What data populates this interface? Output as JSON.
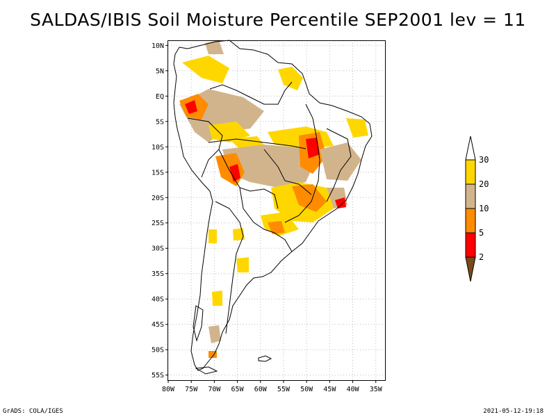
{
  "title": "SALDAS/IBIS Soil Moisture Percentile SEP2001 lev = 11",
  "footer": {
    "left": "GrADS: COLA/IGES",
    "right": "2021-05-12-19:18"
  },
  "map": {
    "lon_range": [
      -80,
      -33
    ],
    "lat_range": [
      -56,
      11
    ],
    "x_ticks": [
      {
        "lon": -80,
        "label": "80W"
      },
      {
        "lon": -75,
        "label": "75W"
      },
      {
        "lon": -70,
        "label": "70W"
      },
      {
        "lon": -65,
        "label": "65W"
      },
      {
        "lon": -60,
        "label": "60W"
      },
      {
        "lon": -55,
        "label": "55W"
      },
      {
        "lon": -50,
        "label": "50W"
      },
      {
        "lon": -45,
        "label": "45W"
      },
      {
        "lon": -40,
        "label": "40W"
      },
      {
        "lon": -35,
        "label": "35W"
      }
    ],
    "y_ticks": [
      {
        "lat": 10,
        "label": "10N"
      },
      {
        "lat": 5,
        "label": "5N"
      },
      {
        "lat": 0,
        "label": "EQ"
      },
      {
        "lat": -5,
        "label": "5S"
      },
      {
        "lat": -10,
        "label": "10S"
      },
      {
        "lat": -15,
        "label": "15S"
      },
      {
        "lat": -20,
        "label": "20S"
      },
      {
        "lat": -25,
        "label": "25S"
      },
      {
        "lat": -30,
        "label": "30S"
      },
      {
        "lat": -35,
        "label": "35S"
      },
      {
        "lat": -40,
        "label": "40S"
      },
      {
        "lat": -45,
        "label": "45S"
      },
      {
        "lat": -50,
        "label": "50S"
      },
      {
        "lat": -55,
        "label": "55S"
      }
    ],
    "grid": true
  },
  "colorbar": {
    "colors": [
      "#7a4a1a",
      "#ff0000",
      "#ff8c00",
      "#d2b48c",
      "#ffd700",
      "#ffffff"
    ],
    "labels": [
      "2",
      "5",
      "10",
      "20",
      "30"
    ]
  },
  "palette": {
    "yellow": "#ffd700",
    "tan": "#d2b48c",
    "orange": "#ff8c00",
    "red": "#ff0000",
    "brown": "#7a4a1a"
  }
}
